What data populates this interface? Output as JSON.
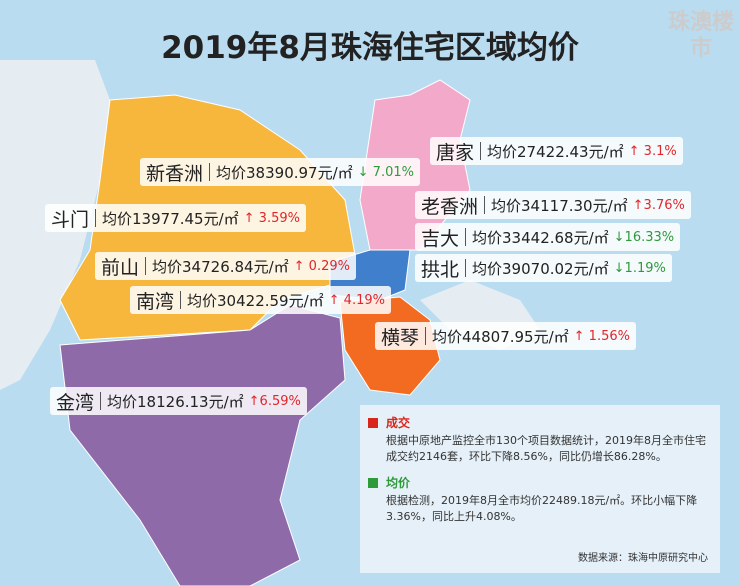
{
  "title": "2019年8月珠海住宅区域均价",
  "logo": "珠澳楼市",
  "regions": [
    {
      "name": "唐家",
      "price": "均价27422.43元/㎡",
      "change": "↑ 3.1%",
      "change_color": "#e0262b"
    },
    {
      "name": "新香洲",
      "price": "均价38390.97元/㎡",
      "change": "↓ 7.01%",
      "change_color": "#2e9a3a"
    },
    {
      "name": "老香洲",
      "price": "均价34117.30元/㎡",
      "change": "↑3.76%",
      "change_color": "#e0262b"
    },
    {
      "name": "斗门",
      "price": "均价13977.45元/㎡",
      "change": "↑ 3.59%",
      "change_color": "#e0262b"
    },
    {
      "name": "吉大",
      "price": "均价33442.68元/㎡",
      "change": "↓16.33%",
      "change_color": "#2e9a3a"
    },
    {
      "name": "前山",
      "price": "均价34726.84元/㎡",
      "change": "↑ 0.29%",
      "change_color": "#e0262b"
    },
    {
      "name": "拱北",
      "price": "均价39070.02元/㎡",
      "change": "↓1.19%",
      "change_color": "#2e9a3a"
    },
    {
      "name": "南湾",
      "price": "均价30422.59元/㎡",
      "change": "↑ 4.19%",
      "change_color": "#e0262b"
    },
    {
      "name": "横琴",
      "price": "均价44807.95元/㎡",
      "change": "↑ 1.56%",
      "change_color": "#e0262b"
    },
    {
      "name": "金湾",
      "price": "均价18126.13元/㎡",
      "change": "↑6.59%",
      "change_color": "#e0262b"
    }
  ],
  "notes": [
    {
      "heading": "成交",
      "marker_color": "#d9261c",
      "text": "根据中原地产监控全市130个项目数据统计，2019年8月全市住宅成交约2146套，环比下降8.56%，同比仍增长86.28%。"
    },
    {
      "heading": "均价",
      "marker_color": "#2e9a3a",
      "text": "根据检测，2019年8月全市均价22489.18元/㎡。环比小幅下降3.36%，同比上升4.08%。"
    }
  ],
  "source": "数据来源：珠海中原研究中心"
}
